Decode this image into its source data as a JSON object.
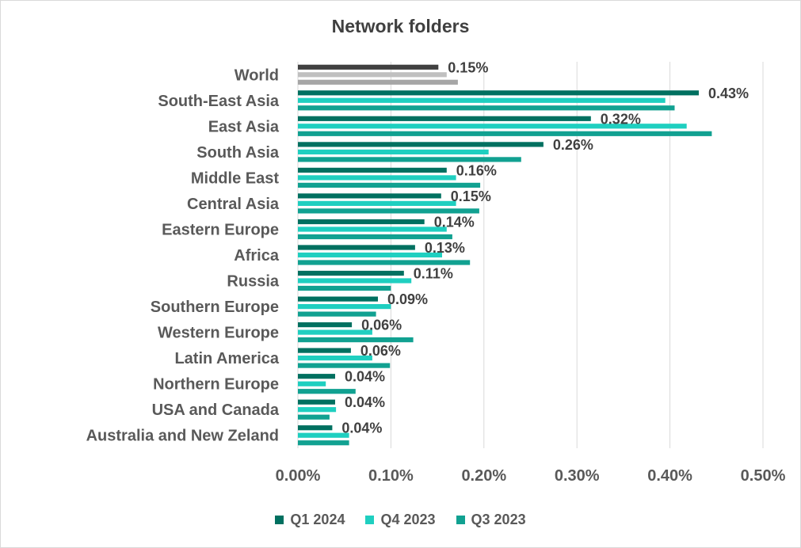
{
  "chart_data": {
    "type": "bar",
    "orientation": "horizontal",
    "title": "Network folders",
    "categories": [
      "World",
      "South-East Asia",
      "East Asia",
      "South Asia",
      "Middle East",
      "Central Asia",
      "Eastern Europe",
      "Africa",
      "Russia",
      "Southern Europe",
      "Western Europe",
      "Latin America",
      "Northern Europe",
      "USA and Canada",
      "Australia and New Zeland"
    ],
    "series": [
      {
        "name": "Q1 2024",
        "color": "#007060",
        "values": [
          0.151,
          0.431,
          0.315,
          0.264,
          0.16,
          0.154,
          0.136,
          0.126,
          0.114,
          0.086,
          0.058,
          0.057,
          0.04,
          0.04,
          0.037
        ]
      },
      {
        "name": "Q4 2023",
        "color": "#1fcfc0",
        "values": [
          0.16,
          0.395,
          0.418,
          0.205,
          0.17,
          0.17,
          0.16,
          0.155,
          0.122,
          0.1,
          0.08,
          0.08,
          0.03,
          0.041,
          0.055
        ]
      },
      {
        "name": "Q3 2023",
        "color": "#11a191",
        "values": [
          0.172,
          0.405,
          0.445,
          0.24,
          0.196,
          0.195,
          0.166,
          0.185,
          0.1,
          0.084,
          0.124,
          0.099,
          0.062,
          0.034,
          0.055
        ]
      }
    ],
    "world_colors": [
      "#404040",
      "#c0c0c0",
      "#a6a6a6"
    ],
    "data_labels": [
      "0.15%",
      "0.43%",
      "0.32%",
      "0.26%",
      "0.16%",
      "0.15%",
      "0.14%",
      "0.13%",
      "0.11%",
      "0.09%",
      "0.06%",
      "0.06%",
      "0.04%",
      "0.04%",
      "0.04%"
    ],
    "xlim": [
      0,
      0.5
    ],
    "xticks": [
      0,
      0.1,
      0.2,
      0.3,
      0.4,
      0.5
    ],
    "xtick_labels": [
      "0.00%",
      "0.10%",
      "0.20%",
      "0.30%",
      "0.40%",
      "0.50%"
    ],
    "grid": true,
    "legend_position": "bottom"
  }
}
